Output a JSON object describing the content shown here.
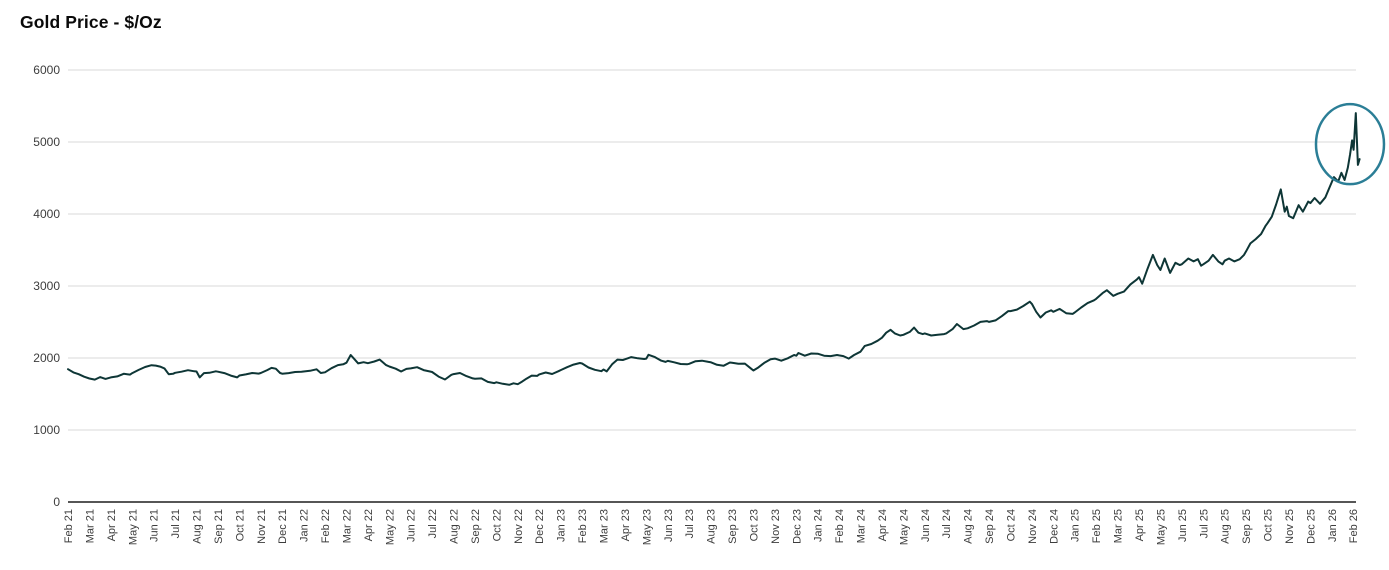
{
  "chart_data": {
    "type": "line",
    "title": "Gold Price - $/Oz",
    "xlabel": "",
    "ylabel": "",
    "ylim": [
      0,
      6000
    ],
    "y_ticks": [
      0,
      1000,
      2000,
      3000,
      4000,
      5000,
      6000
    ],
    "grid": "horizontal",
    "legend": "none",
    "line_color": "#0e3636",
    "gridline_color": "#d9d9d9",
    "axis_line_color": "#1f1f1f",
    "x_axis": {
      "unit": "month",
      "labels": [
        "Feb 21",
        "Mar 21",
        "Apr 21",
        "May 21",
        "Jun 21",
        "Jul 21",
        "Aug 21",
        "Sep 21",
        "Oct 21",
        "Nov 21",
        "Dec 21",
        "Jan 22",
        "Feb 22",
        "Mar 22",
        "Apr 22",
        "May 22",
        "Jun 22",
        "Jul 22",
        "Aug 22",
        "Sep 22",
        "Oct 22",
        "Nov 22",
        "Dec 22",
        "Jan 23",
        "Feb 23",
        "Mar 23",
        "Apr 23",
        "May 23",
        "Jun 23",
        "Jul 23",
        "Aug 23",
        "Sep 23",
        "Oct 23",
        "Nov 23",
        "Dec 23",
        "Jan 24",
        "Feb 24",
        "Mar 24",
        "Apr 24",
        "May 24",
        "Jun 24",
        "Jul 24",
        "Aug 24",
        "Sep 24",
        "Oct 24",
        "Nov 24",
        "Dec 24",
        "Jan 25",
        "Feb 25",
        "Mar 25",
        "Apr 25",
        "May 25",
        "Jun 25",
        "Jul 25",
        "Aug 25",
        "Sep 25",
        "Oct 25",
        "Nov 25",
        "Dec 25",
        "Jan 26",
        "Feb 26"
      ]
    },
    "annotation": {
      "shape": "ellipse",
      "description": "circle highlighting the final price spike",
      "center": [
        59.85,
        4970
      ],
      "color": "#2b7e96"
    },
    "series": [
      {
        "name": "Gold Price ($/Oz)",
        "points": [
          [
            0,
            1845
          ],
          [
            0.25,
            1800
          ],
          [
            0.5,
            1775
          ],
          [
            0.75,
            1740
          ],
          [
            1,
            1715
          ],
          [
            1.25,
            1700
          ],
          [
            1.5,
            1735
          ],
          [
            1.75,
            1710
          ],
          [
            2,
            1730
          ],
          [
            2.3,
            1745
          ],
          [
            2.6,
            1780
          ],
          [
            2.9,
            1770
          ],
          [
            3,
            1790
          ],
          [
            3.3,
            1835
          ],
          [
            3.6,
            1875
          ],
          [
            3.9,
            1900
          ],
          [
            4.1,
            1895
          ],
          [
            4.3,
            1880
          ],
          [
            4.5,
            1855
          ],
          [
            4.7,
            1775
          ],
          [
            4.9,
            1780
          ],
          [
            5,
            1795
          ],
          [
            5.3,
            1810
          ],
          [
            5.6,
            1830
          ],
          [
            5.9,
            1815
          ],
          [
            6,
            1812
          ],
          [
            6.15,
            1730
          ],
          [
            6.35,
            1790
          ],
          [
            6.6,
            1795
          ],
          [
            6.9,
            1815
          ],
          [
            7,
            1810
          ],
          [
            7.3,
            1790
          ],
          [
            7.6,
            1755
          ],
          [
            7.9,
            1730
          ],
          [
            8,
            1757
          ],
          [
            8.3,
            1772
          ],
          [
            8.6,
            1792
          ],
          [
            8.9,
            1783
          ],
          [
            9,
            1792
          ],
          [
            9.3,
            1832
          ],
          [
            9.5,
            1862
          ],
          [
            9.7,
            1852
          ],
          [
            9.9,
            1792
          ],
          [
            10,
            1782
          ],
          [
            10.3,
            1790
          ],
          [
            10.6,
            1806
          ],
          [
            10.9,
            1808
          ],
          [
            11,
            1812
          ],
          [
            11.3,
            1822
          ],
          [
            11.6,
            1843
          ],
          [
            11.8,
            1792
          ],
          [
            12,
            1802
          ],
          [
            12.3,
            1858
          ],
          [
            12.6,
            1902
          ],
          [
            12.85,
            1912
          ],
          [
            13,
            1935
          ],
          [
            13.2,
            2042
          ],
          [
            13.35,
            1990
          ],
          [
            13.55,
            1925
          ],
          [
            13.8,
            1942
          ],
          [
            14,
            1928
          ],
          [
            14.3,
            1952
          ],
          [
            14.55,
            1978
          ],
          [
            14.85,
            1902
          ],
          [
            15,
            1882
          ],
          [
            15.3,
            1852
          ],
          [
            15.55,
            1812
          ],
          [
            15.8,
            1848
          ],
          [
            16,
            1855
          ],
          [
            16.3,
            1872
          ],
          [
            16.6,
            1832
          ],
          [
            16.9,
            1812
          ],
          [
            17,
            1806
          ],
          [
            17.3,
            1742
          ],
          [
            17.6,
            1702
          ],
          [
            17.9,
            1766
          ],
          [
            18,
            1776
          ],
          [
            18.3,
            1792
          ],
          [
            18.6,
            1748
          ],
          [
            18.9,
            1716
          ],
          [
            19,
            1712
          ],
          [
            19.3,
            1716
          ],
          [
            19.6,
            1668
          ],
          [
            19.9,
            1652
          ],
          [
            20,
            1662
          ],
          [
            20.3,
            1642
          ],
          [
            20.6,
            1628
          ],
          [
            20.8,
            1648
          ],
          [
            21,
            1636
          ],
          [
            21.2,
            1672
          ],
          [
            21.4,
            1712
          ],
          [
            21.65,
            1756
          ],
          [
            21.9,
            1752
          ],
          [
            22,
            1772
          ],
          [
            22.3,
            1798
          ],
          [
            22.6,
            1778
          ],
          [
            22.9,
            1816
          ],
          [
            23,
            1832
          ],
          [
            23.3,
            1872
          ],
          [
            23.6,
            1908
          ],
          [
            23.9,
            1930
          ],
          [
            24,
            1924
          ],
          [
            24.3,
            1868
          ],
          [
            24.6,
            1836
          ],
          [
            24.9,
            1816
          ],
          [
            25,
            1840
          ],
          [
            25.15,
            1814
          ],
          [
            25.4,
            1912
          ],
          [
            25.65,
            1978
          ],
          [
            25.9,
            1972
          ],
          [
            26,
            1982
          ],
          [
            26.3,
            2012
          ],
          [
            26.6,
            1996
          ],
          [
            26.9,
            1986
          ],
          [
            27,
            1992
          ],
          [
            27.1,
            2044
          ],
          [
            27.4,
            2012
          ],
          [
            27.7,
            1962
          ],
          [
            27.9,
            1946
          ],
          [
            28,
            1960
          ],
          [
            28.3,
            1940
          ],
          [
            28.6,
            1916
          ],
          [
            28.9,
            1912
          ],
          [
            29,
            1920
          ],
          [
            29.3,
            1956
          ],
          [
            29.6,
            1962
          ],
          [
            29.9,
            1946
          ],
          [
            30,
            1942
          ],
          [
            30.3,
            1906
          ],
          [
            30.6,
            1892
          ],
          [
            30.9,
            1938
          ],
          [
            31,
            1934
          ],
          [
            31.3,
            1920
          ],
          [
            31.6,
            1922
          ],
          [
            31.9,
            1850
          ],
          [
            32,
            1826
          ],
          [
            32.2,
            1862
          ],
          [
            32.5,
            1932
          ],
          [
            32.8,
            1984
          ],
          [
            33,
            1992
          ],
          [
            33.3,
            1962
          ],
          [
            33.6,
            1996
          ],
          [
            33.9,
            2042
          ],
          [
            34,
            2032
          ],
          [
            34.1,
            2070
          ],
          [
            34.4,
            2032
          ],
          [
            34.7,
            2062
          ],
          [
            35,
            2060
          ],
          [
            35.3,
            2032
          ],
          [
            35.6,
            2026
          ],
          [
            35.9,
            2042
          ],
          [
            36,
            2036
          ],
          [
            36.2,
            2026
          ],
          [
            36.45,
            1992
          ],
          [
            36.7,
            2042
          ],
          [
            37,
            2088
          ],
          [
            37.2,
            2168
          ],
          [
            37.5,
            2195
          ],
          [
            37.8,
            2240
          ],
          [
            38,
            2282
          ],
          [
            38.2,
            2352
          ],
          [
            38.4,
            2392
          ],
          [
            38.6,
            2342
          ],
          [
            38.85,
            2312
          ],
          [
            39,
            2322
          ],
          [
            39.3,
            2362
          ],
          [
            39.5,
            2422
          ],
          [
            39.7,
            2352
          ],
          [
            39.9,
            2332
          ],
          [
            40,
            2342
          ],
          [
            40.3,
            2312
          ],
          [
            40.6,
            2322
          ],
          [
            40.9,
            2332
          ],
          [
            41,
            2342
          ],
          [
            41.3,
            2402
          ],
          [
            41.5,
            2472
          ],
          [
            41.8,
            2402
          ],
          [
            42,
            2412
          ],
          [
            42.3,
            2452
          ],
          [
            42.6,
            2502
          ],
          [
            42.9,
            2512
          ],
          [
            43,
            2502
          ],
          [
            43.3,
            2522
          ],
          [
            43.6,
            2582
          ],
          [
            43.9,
            2652
          ],
          [
            44,
            2652
          ],
          [
            44.3,
            2672
          ],
          [
            44.6,
            2722
          ],
          [
            44.9,
            2782
          ],
          [
            45,
            2752
          ],
          [
            45.2,
            2642
          ],
          [
            45.4,
            2562
          ],
          [
            45.65,
            2632
          ],
          [
            45.9,
            2662
          ],
          [
            46,
            2642
          ],
          [
            46.3,
            2682
          ],
          [
            46.6,
            2622
          ],
          [
            46.9,
            2612
          ],
          [
            47,
            2632
          ],
          [
            47.3,
            2702
          ],
          [
            47.6,
            2762
          ],
          [
            47.9,
            2802
          ],
          [
            48,
            2822
          ],
          [
            48.3,
            2902
          ],
          [
            48.5,
            2942
          ],
          [
            48.8,
            2862
          ],
          [
            49,
            2892
          ],
          [
            49.3,
            2922
          ],
          [
            49.6,
            3022
          ],
          [
            49.9,
            3092
          ],
          [
            50,
            3122
          ],
          [
            50.15,
            3032
          ],
          [
            50.4,
            3242
          ],
          [
            50.65,
            3432
          ],
          [
            50.85,
            3292
          ],
          [
            51,
            3222
          ],
          [
            51.2,
            3382
          ],
          [
            51.45,
            3182
          ],
          [
            51.7,
            3322
          ],
          [
            51.9,
            3292
          ],
          [
            52,
            3302
          ],
          [
            52.3,
            3382
          ],
          [
            52.55,
            3342
          ],
          [
            52.75,
            3372
          ],
          [
            52.9,
            3282
          ],
          [
            53,
            3302
          ],
          [
            53.25,
            3352
          ],
          [
            53.45,
            3432
          ],
          [
            53.7,
            3342
          ],
          [
            53.9,
            3302
          ],
          [
            54,
            3352
          ],
          [
            54.2,
            3382
          ],
          [
            54.45,
            3342
          ],
          [
            54.7,
            3372
          ],
          [
            54.9,
            3432
          ],
          [
            55,
            3482
          ],
          [
            55.2,
            3592
          ],
          [
            55.45,
            3652
          ],
          [
            55.7,
            3722
          ],
          [
            55.9,
            3832
          ],
          [
            56,
            3872
          ],
          [
            56.2,
            3962
          ],
          [
            56.4,
            4132
          ],
          [
            56.62,
            4342
          ],
          [
            56.8,
            4032
          ],
          [
            56.9,
            4102
          ],
          [
            57,
            3972
          ],
          [
            57.2,
            3942
          ],
          [
            57.45,
            4122
          ],
          [
            57.65,
            4032
          ],
          [
            57.9,
            4172
          ],
          [
            58,
            4152
          ],
          [
            58.2,
            4222
          ],
          [
            58.45,
            4142
          ],
          [
            58.7,
            4232
          ],
          [
            58.9,
            4372
          ],
          [
            59.1,
            4512
          ],
          [
            59.3,
            4452
          ],
          [
            59.45,
            4572
          ],
          [
            59.6,
            4472
          ],
          [
            59.75,
            4642
          ],
          [
            59.85,
            4822
          ],
          [
            59.95,
            5022
          ],
          [
            60.02,
            4892
          ],
          [
            60.12,
            5402
          ],
          [
            60.22,
            4682
          ],
          [
            60.3,
            4762
          ]
        ]
      }
    ]
  }
}
